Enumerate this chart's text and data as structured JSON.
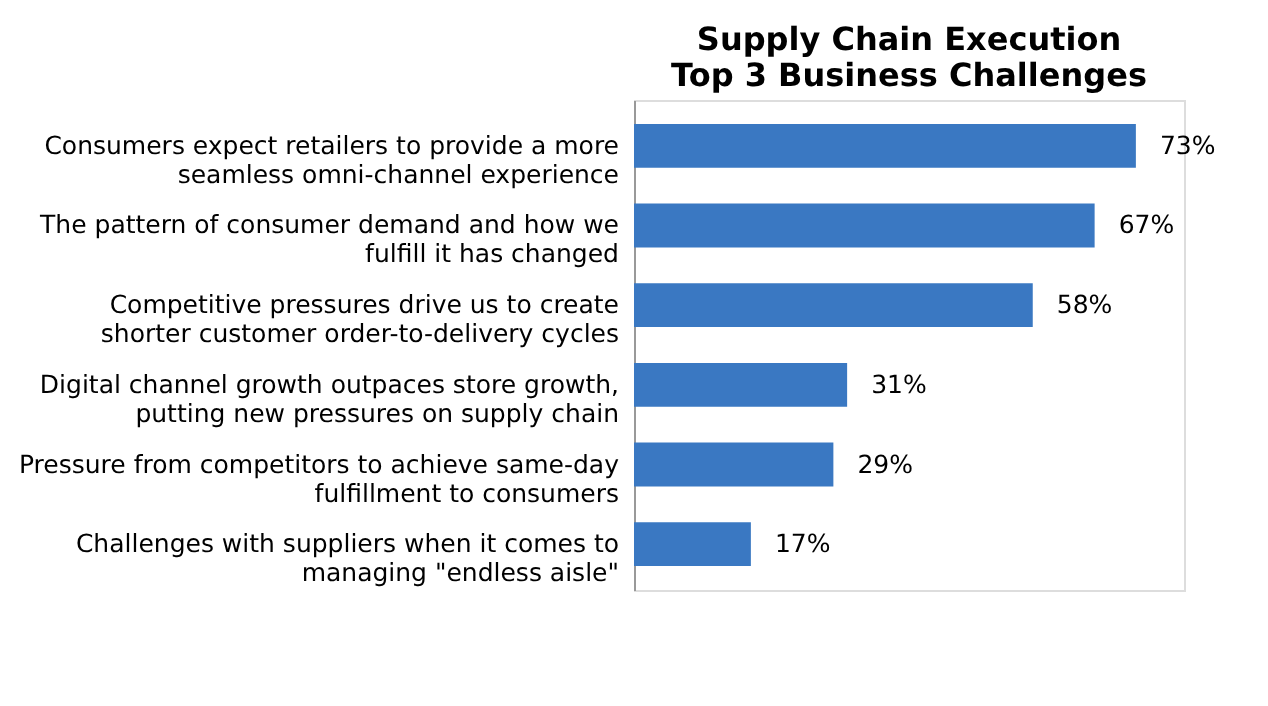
{
  "chart_data": {
    "type": "bar",
    "orientation": "horizontal",
    "title": "Supply Chain Execution\nTop 3 Business Challenges",
    "categories": [
      "Consumers expect retailers to provide a more\nseamless omni-channel experience",
      "The pattern of consumer demand and how we\nfulfill it has changed",
      "Competitive pressures drive us to create\nshorter customer order-to-delivery cycles",
      "Digital channel growth outpaces store growth,\nputting new pressures on supply chain",
      "Pressure from competitors to achieve same-day\nfulfillment to consumers",
      "Challenges with suppliers when it comes to\nmanaging \"endless aisle\""
    ],
    "values": [
      73,
      67,
      58,
      31,
      29,
      17
    ],
    "value_labels": [
      "73%",
      "67%",
      "58%",
      "31%",
      "29%",
      "17%"
    ],
    "color": "#3a78c2",
    "xlim": [
      0,
      80
    ],
    "tick_labels": "y",
    "grid": false
  }
}
